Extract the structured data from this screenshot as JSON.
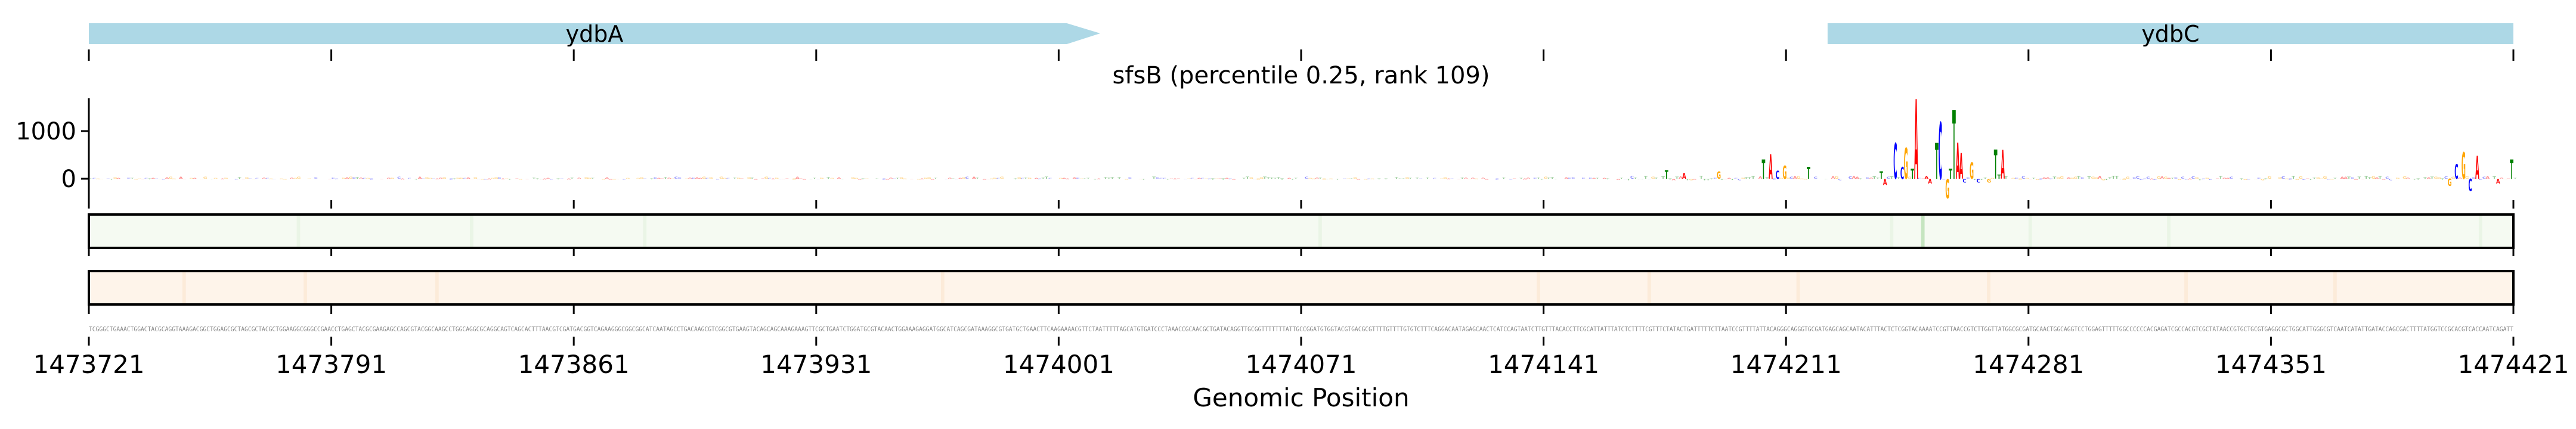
{
  "chart_data": {
    "type": "sequence-logo",
    "title": "sfsB (percentile 0.25, rank 109)",
    "xlabel": "Genomic Position",
    "ylabel": "",
    "xlim": [
      1473721,
      1474421
    ],
    "ylim": [
      -450,
      1700
    ],
    "yticks": [
      {
        "value": 0,
        "label": "0"
      },
      {
        "value": 1000,
        "label": "1000"
      }
    ],
    "xticks": [
      {
        "value": 1473721,
        "label": "1473721"
      },
      {
        "value": 1473791,
        "label": "1473791"
      },
      {
        "value": 1473861,
        "label": "1473861"
      },
      {
        "value": 1473931,
        "label": "1473931"
      },
      {
        "value": 1474001,
        "label": "1474001"
      },
      {
        "value": 1474071,
        "label": "1474071"
      },
      {
        "value": 1474141,
        "label": "1474141"
      },
      {
        "value": 1474211,
        "label": "1474211"
      },
      {
        "value": 1474281,
        "label": "1474281"
      },
      {
        "value": 1474351,
        "label": "1474351"
      },
      {
        "value": 1474421,
        "label": "1474421"
      }
    ],
    "genes": [
      {
        "name": "ydbA",
        "start": 1473721,
        "end": 1474013,
        "strand": "+",
        "arrow": true
      },
      {
        "name": "ydbC",
        "start": 1474223,
        "end": 1474421,
        "strand": "+",
        "arrow": false
      }
    ],
    "gene_color": "#add8e6",
    "base_colors": {
      "A": "#ff0000",
      "C": "#0000ff",
      "G": "#ffa500",
      "T": "#008000"
    },
    "logo_peaks": [
      {
        "offset": 455,
        "base": "T",
        "value": 180
      },
      {
        "offset": 460,
        "base": "A",
        "value": 120
      },
      {
        "offset": 470,
        "base": "G",
        "value": 150
      },
      {
        "offset": 483,
        "base": "T",
        "value": 410
      },
      {
        "offset": 485,
        "base": "A",
        "value": 510
      },
      {
        "offset": 487,
        "base": "C",
        "value": 170
      },
      {
        "offset": 489,
        "base": "G",
        "value": 280
      },
      {
        "offset": 496,
        "base": "T",
        "value": 250
      },
      {
        "offset": 517,
        "base": "T",
        "value": 150
      },
      {
        "offset": 518,
        "base": "A",
        "value": -130
      },
      {
        "offset": 521,
        "base": "C",
        "value": 750
      },
      {
        "offset": 523,
        "base": "C",
        "value": 250
      },
      {
        "offset": 524,
        "base": "G",
        "value": 650
      },
      {
        "offset": 526,
        "base": "T",
        "value": 210
      },
      {
        "offset": 527,
        "base": "A",
        "value": 1675
      },
      {
        "offset": 530,
        "base": "A",
        "value": 60
      },
      {
        "offset": 531,
        "base": "A",
        "value": -100
      },
      {
        "offset": 533,
        "base": "T",
        "value": 760
      },
      {
        "offset": 534,
        "base": "C",
        "value": 1190
      },
      {
        "offset": 536,
        "base": "G",
        "value": -410
      },
      {
        "offset": 537,
        "base": "T",
        "value": 210
      },
      {
        "offset": 538,
        "base": "T",
        "value": 1440
      },
      {
        "offset": 539,
        "base": "A",
        "value": 760
      },
      {
        "offset": 540,
        "base": "A",
        "value": 540
      },
      {
        "offset": 541,
        "base": "C",
        "value": -80
      },
      {
        "offset": 543,
        "base": "G",
        "value": 340
      },
      {
        "offset": 545,
        "base": "C",
        "value": -80
      },
      {
        "offset": 548,
        "base": "G",
        "value": -80
      },
      {
        "offset": 550,
        "base": "T",
        "value": 610
      },
      {
        "offset": 551,
        "base": "T",
        "value": 90
      },
      {
        "offset": 552,
        "base": "A",
        "value": 600
      },
      {
        "offset": 681,
        "base": "G",
        "value": -150
      },
      {
        "offset": 683,
        "base": "C",
        "value": 310
      },
      {
        "offset": 685,
        "base": "G",
        "value": 560
      },
      {
        "offset": 687,
        "base": "C",
        "value": -260
      },
      {
        "offset": 689,
        "base": "A",
        "value": 480
      },
      {
        "offset": 695,
        "base": "A",
        "value": -100
      },
      {
        "offset": 699,
        "base": "T",
        "value": 410
      }
    ],
    "track1_color": "#f5faf2",
    "track1_highlight": {
      "offset": 529,
      "color": "#c5e5c0"
    },
    "track2_color": "#fef4ea",
    "sequence": "TCGGGCTGAAACTGGACTACGCAGGTAAAGACGGCTGGAGCGCTAGCGCTACGCTGGAAGGCGGGCCGAACCTGAGCTACGCGAAGAGCCAGCGTACGGCAAGCCTGGCAGGCGCAGGCAGTCAGCACTTTAACGTCGATGACGGTCAGAAGGGCGGCGGCATCAATAGCCTGACAAGCGTCGGCGTGAAGTACAGCAGCAAAGAAAGTTCGCTGAATCTGGATGCGTACAACTGGAAAGAGGATGGCATCAGCGATAAAGGCGTGATGCTGAACTTCAAGAAAACGTTCTAATTTTTAGCATGTGATCCCTAAACCGCAACGCTGATACAGGTTGCGGTTTTTTTATTGCCGGATGTGGTACGTGACGCGTTTTGTTTTGTGTCTTTCAGGACAATAGAGCAACTCATCCAGTAATCTTGTTTACACCTTCGCATTATTTATCTCTTTTCGTTTCTATACTGATTTTTCTTAATCCGTTTTATTACAGGGCAGGGTGCGATGAGCAGCAATACATTTACTCTCGGTACAAAATCCGTTAACCGTCTTGGTTATGGCGCGATGCAACTGGCAGGTCCTGGAGTTTTTGGCCCCCCACGAGATCGCCACGTCGCTATAACCGTGCTGCGTGAGGCGCTGGCATTGGGCGTCAATCATATTGATACCAGCGACTTTTATGGTCCGCACGTCACCAATCAGATT"
  }
}
